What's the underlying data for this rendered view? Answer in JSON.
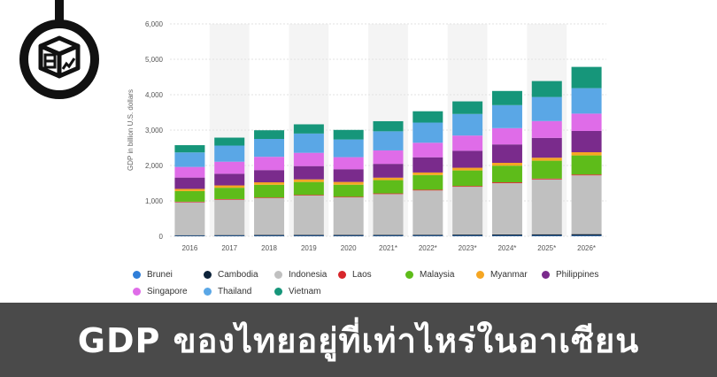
{
  "banner": {
    "title": "GDP ของไทยอยู่ที่เท่าไหร่ในอาเซียน"
  },
  "logo": {
    "icon": "magnifier-chart-box-icon"
  },
  "chart_data": {
    "type": "bar",
    "stacked": true,
    "title": "",
    "xlabel": "",
    "ylabel": "GDP in billion U.S. dollars",
    "ylim": [
      0,
      6000
    ],
    "yticks": [
      0,
      1000,
      2000,
      3000,
      4000,
      5000,
      6000
    ],
    "ytick_labels": [
      "0",
      "1,000",
      "2,000",
      "3,000",
      "4,000",
      "5,000",
      "6,000"
    ],
    "grid": true,
    "legend_position": "bottom",
    "categories": [
      "2016",
      "2017",
      "2018",
      "2019",
      "2020",
      "2021*",
      "2022*",
      "2023*",
      "2024*",
      "2025*",
      "2026*"
    ],
    "series": [
      {
        "name": "Brunei",
        "color": "#2f7ed8",
        "values": [
          11,
          12,
          13,
          13,
          12,
          13,
          14,
          15,
          16,
          17,
          18
        ]
      },
      {
        "name": "Cambodia",
        "color": "#0d233a",
        "values": [
          20,
          22,
          24,
          27,
          26,
          28,
          30,
          33,
          36,
          39,
          42
        ]
      },
      {
        "name": "Indonesia",
        "color": "#c0c0c0",
        "values": [
          930,
          1000,
          1040,
          1110,
          1060,
          1150,
          1250,
          1350,
          1450,
          1550,
          1660
        ]
      },
      {
        "name": "Laos",
        "color": "#d7262b",
        "values": [
          16,
          17,
          18,
          19,
          19,
          20,
          21,
          22,
          23,
          24,
          25
        ]
      },
      {
        "name": "Malaysia",
        "color": "#5ebc1a",
        "values": [
          300,
          320,
          360,
          365,
          340,
          375,
          415,
          440,
          470,
          505,
          540
        ]
      },
      {
        "name": "Myanmar",
        "color": "#f5a623",
        "values": [
          62,
          66,
          70,
          74,
          78,
          70,
          72,
          76,
          80,
          85,
          90
        ]
      },
      {
        "name": "Philippines",
        "color": "#7a2b8c",
        "values": [
          320,
          330,
          345,
          375,
          360,
          390,
          430,
          480,
          520,
          560,
          600
        ]
      },
      {
        "name": "Singapore",
        "color": "#df6ce8",
        "values": [
          300,
          340,
          375,
          375,
          340,
          380,
          410,
          430,
          460,
          475,
          490
        ]
      },
      {
        "name": "Thailand",
        "color": "#5aa7e6",
        "values": [
          410,
          455,
          505,
          545,
          500,
          540,
          570,
          610,
          650,
          680,
          720
        ]
      },
      {
        "name": "Vietnam",
        "color": "#16967a",
        "values": [
          205,
          225,
          245,
          260,
          270,
          285,
          320,
          355,
          400,
          450,
          600
        ]
      }
    ]
  }
}
